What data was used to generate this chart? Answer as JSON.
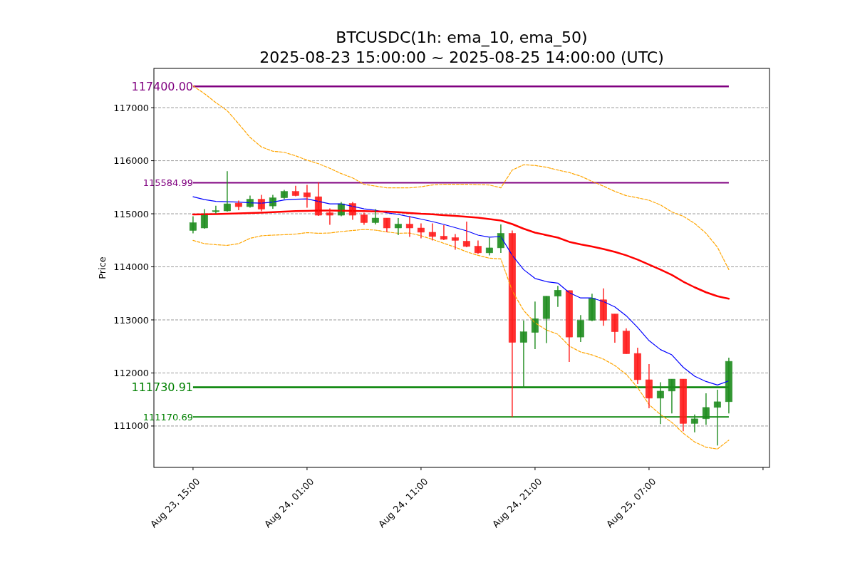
{
  "chart_data": {
    "type": "candlestick",
    "title": "BTCUSDC(1h: ema_10, ema_50)",
    "subtitle": "2025-08-23 15:00:00 ~ 2025-08-25 14:00:00 (UTC)",
    "ylabel": "Price",
    "x": [
      "2025-08-23T15:00",
      "2025-08-23T16:00",
      "2025-08-23T17:00",
      "2025-08-23T18:00",
      "2025-08-23T19:00",
      "2025-08-23T20:00",
      "2025-08-23T21:00",
      "2025-08-23T22:00",
      "2025-08-23T23:00",
      "2025-08-24T00:00",
      "2025-08-24T01:00",
      "2025-08-24T02:00",
      "2025-08-24T03:00",
      "2025-08-24T04:00",
      "2025-08-24T05:00",
      "2025-08-24T06:00",
      "2025-08-24T07:00",
      "2025-08-24T08:00",
      "2025-08-24T09:00",
      "2025-08-24T10:00",
      "2025-08-24T11:00",
      "2025-08-24T12:00",
      "2025-08-24T13:00",
      "2025-08-24T14:00",
      "2025-08-24T15:00",
      "2025-08-24T16:00",
      "2025-08-24T17:00",
      "2025-08-24T18:00",
      "2025-08-24T19:00",
      "2025-08-24T20:00",
      "2025-08-24T21:00",
      "2025-08-24T22:00",
      "2025-08-24T23:00",
      "2025-08-25T00:00",
      "2025-08-25T01:00",
      "2025-08-25T02:00",
      "2025-08-25T03:00",
      "2025-08-25T04:00",
      "2025-08-25T05:00",
      "2025-08-25T06:00",
      "2025-08-25T07:00",
      "2025-08-25T08:00",
      "2025-08-25T09:00",
      "2025-08-25T10:00",
      "2025-08-25T11:00",
      "2025-08-25T12:00",
      "2025-08-25T13:00",
      "2025-08-25T14:00"
    ],
    "xlim": [
      "2025-08-23T11:34",
      "2025-08-25T17:34"
    ],
    "xticks": [
      {
        "value": "2025-08-23T15:00",
        "label": "Aug 23, 15:00"
      },
      {
        "value": "2025-08-24T01:00",
        "label": "Aug 24, 01:00"
      },
      {
        "value": "2025-08-24T11:00",
        "label": "Aug 24, 11:00"
      },
      {
        "value": "2025-08-24T21:00",
        "label": "Aug 24, 21:00"
      },
      {
        "value": "2025-08-25T07:00",
        "label": "Aug 25, 07:00"
      },
      {
        "value": "2025-08-25T17:00",
        "label": null
      }
    ],
    "ylim": [
      110220,
      117740
    ],
    "yticks": [
      111000,
      112000,
      113000,
      114000,
      115000,
      116000,
      117000
    ],
    "grid": "y",
    "series": [
      {
        "type": "candlestick",
        "ohlc": [
          [
            114685,
            114953,
            114632,
            114833
          ],
          [
            114732,
            115087,
            114719,
            114993
          ],
          [
            115040,
            115150,
            115005,
            115060
          ],
          [
            115054,
            115804,
            115040,
            115188
          ],
          [
            115201,
            115248,
            115067,
            115134
          ],
          [
            115134,
            115342,
            115114,
            115275
          ],
          [
            115275,
            115355,
            115047,
            115087
          ],
          [
            115147,
            115355,
            115094,
            115301
          ],
          [
            115301,
            115449,
            115275,
            115422
          ],
          [
            115422,
            115529,
            115328,
            115342
          ],
          [
            115395,
            115543,
            115114,
            115315
          ],
          [
            115322,
            115596,
            114960,
            114973
          ],
          [
            115020,
            115100,
            114792,
            114973
          ],
          [
            114973,
            115221,
            114953,
            115188
          ],
          [
            115194,
            115221,
            114886,
            114973
          ],
          [
            114980,
            115020,
            114792,
            114833
          ],
          [
            114833,
            115087,
            114799,
            114920
          ],
          [
            114920,
            114920,
            114652,
            114732
          ],
          [
            114732,
            114920,
            114598,
            114806
          ],
          [
            114806,
            114953,
            114565,
            114732
          ],
          [
            114732,
            114819,
            114538,
            114652
          ],
          [
            114652,
            114819,
            114498,
            114571
          ],
          [
            114578,
            114786,
            114504,
            114518
          ],
          [
            114551,
            114618,
            114324,
            114498
          ],
          [
            114484,
            114853,
            114370,
            114384
          ],
          [
            114390,
            114498,
            114243,
            114263
          ],
          [
            114263,
            114551,
            114216,
            114357
          ],
          [
            114357,
            114799,
            114263,
            114632
          ],
          [
            114632,
            114685,
            111170,
            112575
          ],
          [
            112575,
            112991,
            111720,
            112776
          ],
          [
            112763,
            113346,
            112448,
            113024
          ],
          [
            113024,
            113446,
            112562,
            113446
          ],
          [
            113446,
            113640,
            113245,
            113560
          ],
          [
            113553,
            113553,
            112207,
            112676
          ],
          [
            112676,
            113091,
            112582,
            112991
          ],
          [
            112991,
            113493,
            112977,
            113406
          ],
          [
            113379,
            113593,
            112890,
            112991
          ],
          [
            113111,
            113111,
            112569,
            112776
          ],
          [
            112790,
            112843,
            112361,
            112361
          ],
          [
            112368,
            112475,
            111792,
            111872
          ],
          [
            111872,
            112167,
            111336,
            111524
          ],
          [
            111524,
            111825,
            111035,
            111658
          ],
          [
            111658,
            111885,
            111236,
            111885
          ],
          [
            111885,
            111885,
            110901,
            111048
          ],
          [
            111048,
            111216,
            110881,
            111135
          ],
          [
            111135,
            111618,
            111021,
            111350
          ],
          [
            111350,
            111685,
            110633,
            111457
          ],
          [
            111457,
            112287,
            111236,
            112220
          ]
        ],
        "colors": [
          "#1e8c1e",
          "#1e8c1e",
          "#1e8c1e",
          "#1e8c1e",
          "#ff1a1a",
          "#1e8c1e",
          "#ff1a1a",
          "#1e8c1e",
          "#1e8c1e",
          "#ff1a1a",
          "#ff1a1a",
          "#ff1a1a",
          "#ff1a1a",
          "#1e8c1e",
          "#ff1a1a",
          "#ff1a1a",
          "#1e8c1e",
          "#ff1a1a",
          "#1e8c1e",
          "#ff1a1a",
          "#ff1a1a",
          "#ff1a1a",
          "#ff1a1a",
          "#ff1a1a",
          "#ff1a1a",
          "#ff1a1a",
          "#1e8c1e",
          "#1e8c1e",
          "#ff1a1a",
          "#1e8c1e",
          "#1e8c1e",
          "#1e8c1e",
          "#1e8c1e",
          "#ff1a1a",
          "#1e8c1e",
          "#1e8c1e",
          "#ff1a1a",
          "#ff1a1a",
          "#ff1a1a",
          "#ff1a1a",
          "#ff1a1a",
          "#1e8c1e",
          "#1e8c1e",
          "#ff1a1a",
          "#1e8c1e",
          "#1e8c1e",
          "#1e8c1e",
          "#1e8c1e"
        ]
      },
      {
        "type": "line",
        "color": "#0000ff",
        "values": [
          115321,
          115268,
          115234,
          115228,
          115221,
          115208,
          115201,
          115221,
          115261,
          115275,
          115281,
          115234,
          115188,
          115188,
          115141,
          115094,
          115067,
          115020,
          114987,
          114946,
          114900,
          114853,
          114799,
          114739,
          114678,
          114598,
          114558,
          114571,
          114216,
          113948,
          113781,
          113721,
          113694,
          113513,
          113413,
          113413,
          113346,
          113245,
          113078,
          112857,
          112609,
          112441,
          112341,
          112107,
          111939,
          111839,
          111772,
          111852
        ]
      },
      {
        "type": "line",
        "color": "#ff0000",
        "values": [
          114987,
          114990,
          114995,
          115000,
          115007,
          115013,
          115020,
          115030,
          115040,
          115050,
          115055,
          115060,
          115060,
          115058,
          115055,
          115050,
          115045,
          115040,
          115030,
          115015,
          115000,
          114990,
          114975,
          114960,
          114945,
          114926,
          114900,
          114873,
          114806,
          114719,
          114645,
          114598,
          114551,
          114471,
          114424,
          114384,
          114337,
          114283,
          114216,
          114136,
          114042,
          113948,
          113848,
          113721,
          113614,
          113520,
          113446,
          113399
        ]
      },
      {
        "type": "line",
        "color": "#ffa500",
        "line_style": "dashed",
        "values": [
          117411,
          117264,
          117096,
          116942,
          116695,
          116440,
          116259,
          116179,
          116159,
          116092,
          116011,
          115944,
          115857,
          115757,
          115676,
          115556,
          115522,
          115489,
          115489,
          115489,
          115509,
          115543,
          115556,
          115556,
          115556,
          115549,
          115543,
          115489,
          115824,
          115924,
          115911,
          115877,
          115824,
          115777,
          115710,
          115610,
          115522,
          115422,
          115342,
          115301,
          115255,
          115167,
          115034,
          114953,
          114819,
          114632,
          114370,
          113948
        ]
      },
      {
        "type": "line",
        "color": "#ffa500",
        "line_style": "dashed",
        "values": [
          114498,
          114437,
          114417,
          114404,
          114437,
          114538,
          114585,
          114598,
          114605,
          114618,
          114645,
          114632,
          114638,
          114665,
          114685,
          114705,
          114692,
          114658,
          114632,
          114638,
          114585,
          114518,
          114444,
          114370,
          114283,
          114216,
          114163,
          114149,
          113547,
          113178,
          112944,
          112810,
          112730,
          112508,
          112395,
          112341,
          112261,
          112140,
          111973,
          111725,
          111403,
          111216,
          111068,
          110866,
          110700,
          110600,
          110566,
          110733
        ]
      }
    ],
    "ref_lines": [
      {
        "axis": "y",
        "value": 117400,
        "label": "117400.00",
        "color": "#800080"
      },
      {
        "axis": "y",
        "value": 115584.99,
        "label": "115584.99",
        "color": "#800080"
      },
      {
        "axis": "y",
        "value": 111730.91,
        "label": "111730.91",
        "color": "#008000"
      },
      {
        "axis": "y",
        "value": 111170.69,
        "label": "111170.69",
        "color": "#008000"
      }
    ]
  }
}
